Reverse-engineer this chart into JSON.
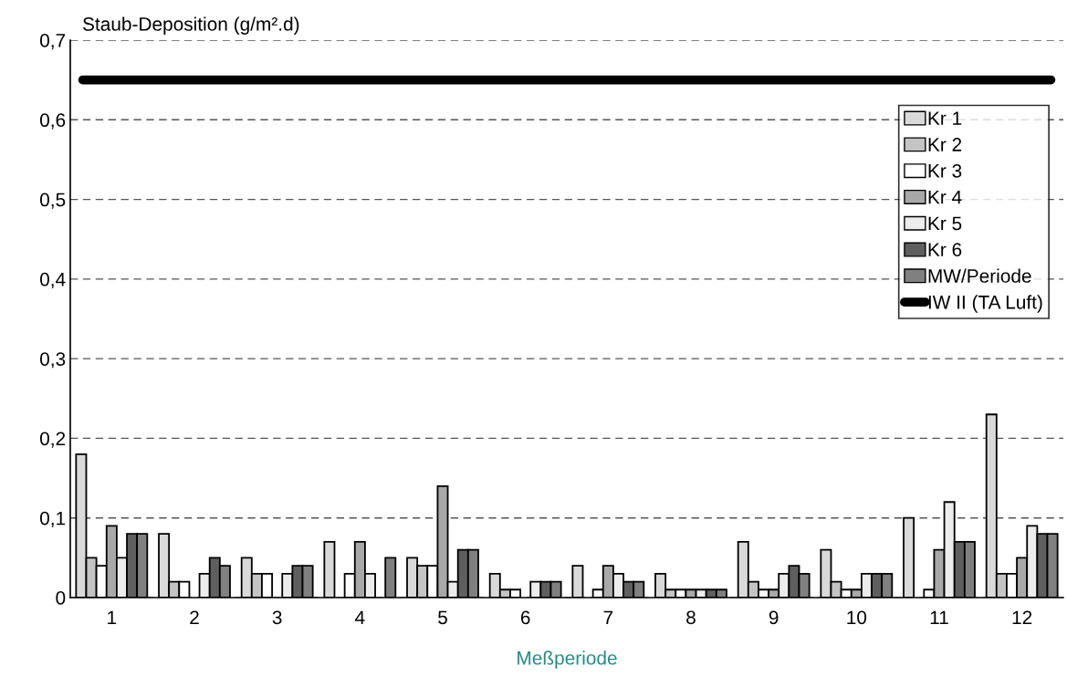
{
  "chart_data": {
    "type": "bar",
    "ylabel": "Staub-Deposition (g/m².d)",
    "xlabel": "Meßperiode",
    "categories": [
      "1",
      "2",
      "3",
      "4",
      "5",
      "6",
      "7",
      "8",
      "9",
      "10",
      "11",
      "12"
    ],
    "series": [
      {
        "name": "Kr 1",
        "color": "#d9d9d9",
        "values": [
          0.18,
          0.08,
          0.05,
          0.07,
          0.05,
          0.03,
          0.04,
          0.03,
          0.07,
          0.06,
          0.1,
          0.23
        ]
      },
      {
        "name": "Kr 2",
        "color": "#c4c4c4",
        "values": [
          0.05,
          0.02,
          0.03,
          null,
          0.04,
          0.01,
          null,
          0.01,
          0.02,
          0.02,
          null,
          0.03
        ]
      },
      {
        "name": "Kr 3",
        "color": "#ffffff",
        "values": [
          0.04,
          0.02,
          0.03,
          0.03,
          0.04,
          0.01,
          0.01,
          0.01,
          0.01,
          0.01,
          0.01,
          0.03
        ]
      },
      {
        "name": "Kr 4",
        "color": "#a8a8a8",
        "values": [
          0.09,
          null,
          null,
          0.07,
          0.14,
          null,
          0.04,
          0.01,
          0.01,
          0.01,
          0.06,
          0.05
        ]
      },
      {
        "name": "Kr 5",
        "color": "#ececec",
        "values": [
          0.05,
          0.03,
          0.03,
          0.03,
          0.02,
          0.02,
          0.03,
          0.01,
          0.03,
          0.03,
          0.12,
          0.09
        ]
      },
      {
        "name": "Kr 6",
        "color": "#5f5f5f",
        "values": [
          0.08,
          0.05,
          0.04,
          null,
          0.06,
          0.02,
          0.02,
          0.01,
          0.04,
          0.03,
          0.07,
          0.08
        ]
      },
      {
        "name": "MW/Periode",
        "color": "#808080",
        "values": [
          0.08,
          0.04,
          0.04,
          0.05,
          0.06,
          0.02,
          0.02,
          0.01,
          0.03,
          0.03,
          0.07,
          0.08
        ]
      }
    ],
    "ref_lines": [
      {
        "axis": "y",
        "value": 0.65,
        "label": "IW II (TA Luft)",
        "color": "#000000"
      }
    ],
    "ylim": [
      0,
      0.7
    ],
    "yticks": [
      0,
      {
        "value": 0.1,
        "label": "0,1"
      },
      {
        "value": 0.2,
        "label": "0,2"
      },
      {
        "value": 0.3,
        "label": "0,3"
      },
      {
        "value": 0.4,
        "label": "0,4"
      },
      {
        "value": 0.5,
        "label": "0,5"
      },
      {
        "value": 0.6,
        "label": "0,6"
      },
      {
        "value": 0.7,
        "label": "0,7"
      }
    ],
    "grid": "y",
    "legend": "top right"
  }
}
